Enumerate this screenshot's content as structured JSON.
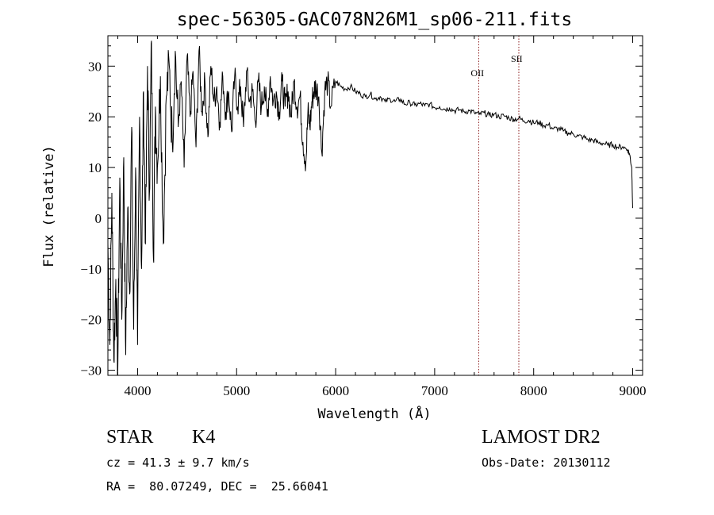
{
  "chart_data": {
    "type": "line",
    "title": "spec-56305-GAC078N26M1_sp06-211.fits",
    "xlabel": "Wavelength (Å)",
    "ylabel": "Flux (relative)",
    "xlim": [
      3700,
      9100
    ],
    "ylim": [
      -31,
      36
    ],
    "xticks": [
      4000,
      5000,
      6000,
      7000,
      8000,
      9000
    ],
    "yticks": [
      -30,
      -20,
      -10,
      0,
      10,
      20,
      30
    ],
    "grid": false,
    "line_color": "#000000",
    "marker_color": "#8b1a1a",
    "lines": [
      {
        "label": "OII",
        "x": 7445
      },
      {
        "label": "SII",
        "x": 7850
      }
    ],
    "series": [
      {
        "x": [
          3700,
          3720,
          3740,
          3760,
          3780,
          3800,
          3820,
          3840,
          3860,
          3880,
          3900,
          3920,
          3940,
          3960,
          3980,
          4000,
          4020,
          4040,
          4060,
          4080,
          4100,
          4120,
          4140,
          4160,
          4180,
          4200,
          4230,
          4260,
          4290,
          4320,
          4350,
          4380,
          4410,
          4440,
          4470,
          4500,
          4530,
          4560,
          4590,
          4620,
          4650,
          4680,
          4710,
          4740,
          4770,
          4800,
          4830,
          4860,
          4890,
          4920,
          4950,
          4980,
          5010,
          5040,
          5070,
          5100,
          5130,
          5160,
          5190,
          5220,
          5250,
          5280,
          5310,
          5340,
          5370,
          5400,
          5430,
          5460,
          5490,
          5520,
          5550,
          5580,
          5610,
          5640,
          5670,
          5700,
          5720,
          5740,
          5760,
          5780,
          5800,
          5830,
          5860,
          5890,
          5920,
          5950,
          6000,
          6050,
          6100,
          6150,
          6200,
          6250,
          6300,
          6350,
          6400,
          6450,
          6500,
          6550,
          6600,
          6650,
          6700,
          6750,
          6800,
          6850,
          6900,
          6950,
          7000,
          7050,
          7100,
          7150,
          7200,
          7250,
          7300,
          7350,
          7400,
          7450,
          7500,
          7550,
          7600,
          7650,
          7700,
          7750,
          7800,
          7850,
          7900,
          7950,
          8000,
          8050,
          8100,
          8150,
          8200,
          8250,
          8300,
          8350,
          8400,
          8450,
          8500,
          8550,
          8600,
          8650,
          8700,
          8750,
          8800,
          8850,
          8900,
          8950,
          8970,
          8990,
          9000
        ],
        "y": [
          -5,
          -25,
          5,
          -28,
          -12,
          -30,
          8,
          -20,
          12,
          -27,
          2,
          -15,
          18,
          -22,
          10,
          -25,
          20,
          -10,
          25,
          -5,
          30,
          5,
          35,
          -8,
          22,
          10,
          28,
          -5,
          24,
          30,
          15,
          33,
          18,
          27,
          10,
          32,
          20,
          29,
          14,
          33,
          21,
          27,
          16,
          30,
          23,
          26,
          19,
          28,
          21,
          25,
          17,
          28,
          22,
          26,
          18,
          29,
          23,
          25,
          19,
          27,
          22,
          26,
          20,
          28,
          23,
          25,
          21,
          27,
          22,
          25,
          20,
          27,
          22,
          24,
          15,
          11,
          21,
          18,
          23,
          25,
          26,
          24,
          13,
          25,
          27,
          22,
          27,
          26,
          25.5,
          26,
          25,
          24.5,
          24,
          24.5,
          23.5,
          24,
          23,
          23.5,
          23,
          23.5,
          22.5,
          22.8,
          22.3,
          22.6,
          22.2,
          22.5,
          21.8,
          22,
          21.5,
          21.7,
          21.2,
          21.4,
          21,
          21.2,
          20.8,
          20.5,
          20.8,
          20.3,
          20.5,
          20,
          20.2,
          19.8,
          19.5,
          19.7,
          19.2,
          19.3,
          18.8,
          18.9,
          18.3,
          18.4,
          17.6,
          17.7,
          17.2,
          16.8,
          16.6,
          16.2,
          16,
          15.5,
          15.4,
          14.9,
          14.8,
          14.4,
          14.5,
          14,
          14.1,
          13.5,
          12.5,
          10,
          2
        ]
      }
    ]
  },
  "info": {
    "object_class": "STAR",
    "subclass": "K4",
    "survey": "LAMOST DR2",
    "redshift": "cz = 41.3 ± 9.7 km/s",
    "obs_date": "Obs-Date: 20130112",
    "coords": "RA =  80.07249, DEC =  25.66041"
  }
}
